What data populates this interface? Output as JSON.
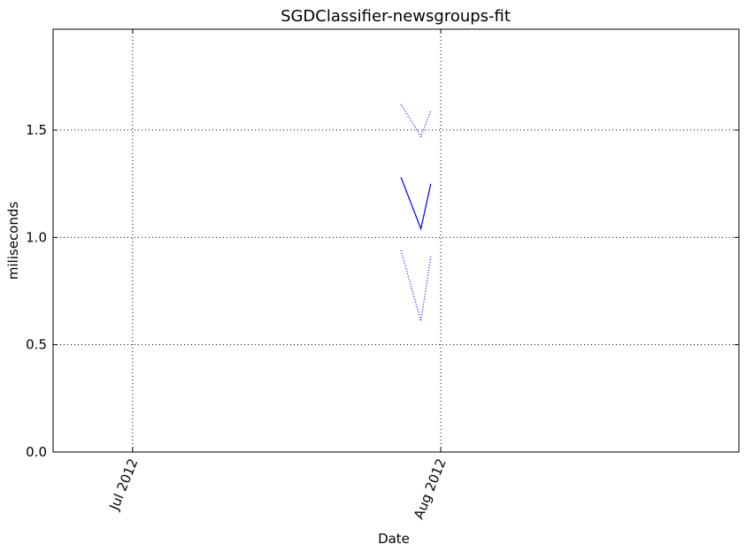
{
  "chart_data": {
    "type": "line",
    "title": "SGDClassifier-newsgroups-fit",
    "xlabel": "Date",
    "ylabel": "miliseconds",
    "x_axis_type": "date",
    "xlim": [
      "2012-06-23",
      "2012-08-31"
    ],
    "ylim": [
      0.0,
      1.97
    ],
    "x_ticks": [
      {
        "date": "2012-07-01",
        "label": "Jul 2012"
      },
      {
        "date": "2012-08-01",
        "label": "Aug 2012"
      }
    ],
    "y_ticks": [
      {
        "value": 0.0,
        "label": "0.0"
      },
      {
        "value": 0.5,
        "label": "0.5"
      },
      {
        "value": 1.0,
        "label": "1.0"
      },
      {
        "value": 1.5,
        "label": "1.5"
      }
    ],
    "grid": true,
    "x": [
      "2012-07-28",
      "2012-07-30",
      "2012-07-31"
    ],
    "series": [
      {
        "values": [
          1.62,
          1.47,
          1.59
        ],
        "color": "#0000ff",
        "style": "dotted"
      },
      {
        "values": [
          1.28,
          1.04,
          1.25
        ],
        "color": "#0000ff",
        "style": "solid"
      },
      {
        "values": [
          0.94,
          0.61,
          0.91
        ],
        "color": "#0000ff",
        "style": "dotted"
      }
    ]
  }
}
